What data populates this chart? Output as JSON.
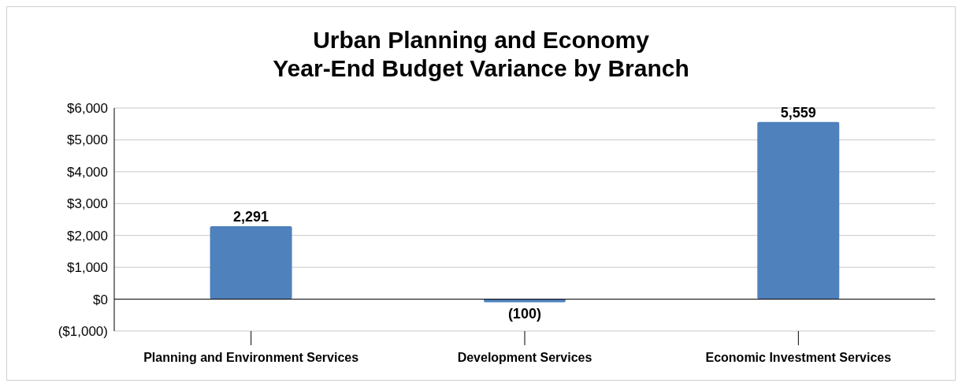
{
  "chart_data": {
    "type": "bar",
    "title": "Urban Planning and Economy\nYear-End Budget Variance by Branch",
    "categories": [
      "Planning and Environment Services",
      "Development Services",
      "Economic Investment Services"
    ],
    "values": [
      2291,
      -100,
      5559
    ],
    "color": "#4f81bd",
    "value_labels": [
      "2,291",
      "(100)",
      "5,559"
    ],
    "ylim": [
      -1000,
      6000
    ],
    "yticks": [
      {
        "value": -1000,
        "label": "($1,000)"
      },
      {
        "value": 0,
        "label": "$0"
      },
      {
        "value": 1000,
        "label": "$1,000"
      },
      {
        "value": 2000,
        "label": "$2,000"
      },
      {
        "value": 3000,
        "label": "$3,000"
      },
      {
        "value": 4000,
        "label": "$4,000"
      },
      {
        "value": 5000,
        "label": "$5,000"
      },
      {
        "value": 6000,
        "label": "$6,000"
      }
    ],
    "grid": "y",
    "ref_lines": [
      {
        "axis": "y",
        "value": 0
      }
    ]
  }
}
